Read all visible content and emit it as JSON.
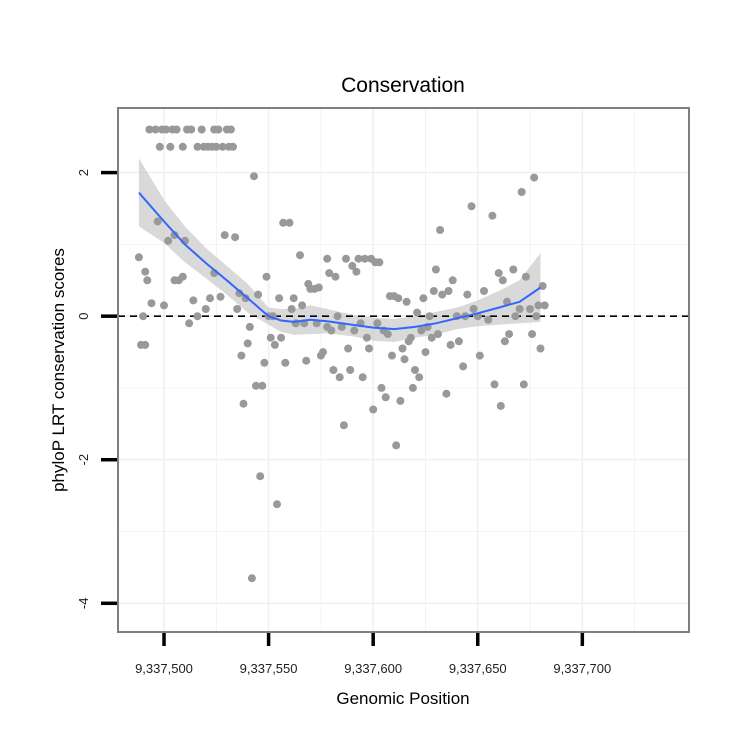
{
  "chart_data": {
    "type": "scatter",
    "title": "Conservation",
    "xlabel": "Genomic Position",
    "ylabel": "phyloP LRT conservation scores",
    "xlim": [
      9337478,
      9337751
    ],
    "ylim": [
      -4.4,
      2.9
    ],
    "x_ticks": [
      9337500,
      9337550,
      9337600,
      9337650,
      9337700
    ],
    "x_tick_labels": [
      "9,337,500",
      "9,337,550",
      "9,337,600",
      "9,337,650",
      "9,337,700"
    ],
    "y_ticks": [
      -4,
      -2,
      0,
      2
    ],
    "y_tick_labels": [
      "-4",
      "-2",
      "0",
      "2"
    ],
    "grid": true,
    "reference_line": {
      "y": 0,
      "style": "dashed"
    },
    "colors": {
      "points": "#999999",
      "smooth_line": "#3366ff",
      "ribbon": "#cccccc",
      "border": "#7f7f7f",
      "grid": "#f0f0f0",
      "reference": "#000000"
    },
    "points": [
      [
        9337488,
        0.82
      ],
      [
        9337489,
        -0.4
      ],
      [
        9337490,
        0.0
      ],
      [
        9337491,
        0.62
      ],
      [
        9337491,
        -0.4
      ],
      [
        9337492,
        0.5
      ],
      [
        9337493,
        2.6
      ],
      [
        9337494,
        0.18
      ],
      [
        9337496,
        2.6
      ],
      [
        9337497,
        1.32
      ],
      [
        9337498,
        2.36
      ],
      [
        9337499,
        2.6
      ],
      [
        9337500,
        0.15
      ],
      [
        9337501,
        2.6
      ],
      [
        9337502,
        1.05
      ],
      [
        9337503,
        2.36
      ],
      [
        9337504,
        2.6
      ],
      [
        9337505,
        1.13
      ],
      [
        9337505,
        0.5
      ],
      [
        9337506,
        2.6
      ],
      [
        9337507,
        0.5
      ],
      [
        9337509,
        2.36
      ],
      [
        9337509,
        0.55
      ],
      [
        9337510,
        1.05
      ],
      [
        9337511,
        2.6
      ],
      [
        9337512,
        -0.1
      ],
      [
        9337513,
        2.6
      ],
      [
        9337514,
        0.22
      ],
      [
        9337516,
        2.36
      ],
      [
        9337516,
        0.0
      ],
      [
        9337518,
        2.6
      ],
      [
        9337519,
        2.36
      ],
      [
        9337520,
        0.1
      ],
      [
        9337521,
        2.36
      ],
      [
        9337522,
        0.25
      ],
      [
        9337523,
        2.36
      ],
      [
        9337524,
        0.6
      ],
      [
        9337524,
        2.6
      ],
      [
        9337525,
        2.36
      ],
      [
        9337526,
        2.6
      ],
      [
        9337527,
        0.27
      ],
      [
        9337528,
        2.36
      ],
      [
        9337529,
        1.13
      ],
      [
        9337530,
        2.6
      ],
      [
        9337531,
        2.36
      ],
      [
        9337532,
        2.6
      ],
      [
        9337533,
        2.36
      ],
      [
        9337534,
        1.1
      ],
      [
        9337535,
        0.1
      ],
      [
        9337536,
        0.32
      ],
      [
        9337537,
        -0.55
      ],
      [
        9337538,
        -1.22
      ],
      [
        9337539,
        0.25
      ],
      [
        9337540,
        -0.38
      ],
      [
        9337541,
        -0.15
      ],
      [
        9337542,
        -3.65
      ],
      [
        9337543,
        1.95
      ],
      [
        9337544,
        -0.97
      ],
      [
        9337545,
        0.3
      ],
      [
        9337546,
        -2.23
      ],
      [
        9337547,
        -0.97
      ],
      [
        9337548,
        -0.65
      ],
      [
        9337549,
        0.55
      ],
      [
        9337550,
        0.0
      ],
      [
        9337551,
        -0.3
      ],
      [
        9337552,
        0.0
      ],
      [
        9337553,
        -0.4
      ],
      [
        9337554,
        -2.62
      ],
      [
        9337555,
        0.25
      ],
      [
        9337556,
        -0.3
      ],
      [
        9337557,
        1.3
      ],
      [
        9337558,
        -0.65
      ],
      [
        9337560,
        1.3
      ],
      [
        9337561,
        0.1
      ],
      [
        9337562,
        0.25
      ],
      [
        9337563,
        -0.1
      ],
      [
        9337565,
        0.85
      ],
      [
        9337566,
        0.15
      ],
      [
        9337567,
        -0.1
      ],
      [
        9337568,
        -0.62
      ],
      [
        9337569,
        0.45
      ],
      [
        9337570,
        0.38
      ],
      [
        9337572,
        0.38
      ],
      [
        9337573,
        -0.1
      ],
      [
        9337574,
        0.4
      ],
      [
        9337575,
        -0.55
      ],
      [
        9337576,
        -0.5
      ],
      [
        9337578,
        -0.15
      ],
      [
        9337578,
        0.8
      ],
      [
        9337579,
        0.6
      ],
      [
        9337580,
        -0.2
      ],
      [
        9337581,
        -0.75
      ],
      [
        9337582,
        0.55
      ],
      [
        9337583,
        0.0
      ],
      [
        9337584,
        -0.85
      ],
      [
        9337585,
        -0.15
      ],
      [
        9337586,
        -1.52
      ],
      [
        9337587,
        0.8
      ],
      [
        9337588,
        -0.45
      ],
      [
        9337589,
        -0.75
      ],
      [
        9337590,
        0.7
      ],
      [
        9337591,
        -0.2
      ],
      [
        9337592,
        0.62
      ],
      [
        9337593,
        0.8
      ],
      [
        9337594,
        -0.1
      ],
      [
        9337595,
        -0.85
      ],
      [
        9337596,
        0.8
      ],
      [
        9337597,
        -0.3
      ],
      [
        9337598,
        -0.45
      ],
      [
        9337599,
        0.8
      ],
      [
        9337600,
        -1.3
      ],
      [
        9337601,
        0.75
      ],
      [
        9337602,
        -0.1
      ],
      [
        9337603,
        0.75
      ],
      [
        9337604,
        -1.0
      ],
      [
        9337605,
        -0.2
      ],
      [
        9337606,
        -1.13
      ],
      [
        9337607,
        -0.25
      ],
      [
        9337608,
        0.28
      ],
      [
        9337609,
        -0.55
      ],
      [
        9337610,
        0.28
      ],
      [
        9337611,
        -1.8
      ],
      [
        9337612,
        0.25
      ],
      [
        9337613,
        -1.18
      ],
      [
        9337614,
        -0.45
      ],
      [
        9337615,
        -0.6
      ],
      [
        9337616,
        0.2
      ],
      [
        9337617,
        -0.35
      ],
      [
        9337618,
        -0.3
      ],
      [
        9337619,
        -1.0
      ],
      [
        9337620,
        -0.75
      ],
      [
        9337621,
        0.05
      ],
      [
        9337622,
        -0.85
      ],
      [
        9337623,
        -0.2
      ],
      [
        9337624,
        0.25
      ],
      [
        9337625,
        -0.5
      ],
      [
        9337626,
        -0.15
      ],
      [
        9337627,
        0.0
      ],
      [
        9337628,
        -0.3
      ],
      [
        9337629,
        0.35
      ],
      [
        9337630,
        0.65
      ],
      [
        9337631,
        -0.25
      ],
      [
        9337632,
        1.2
      ],
      [
        9337633,
        0.3
      ],
      [
        9337635,
        -1.08
      ],
      [
        9337636,
        0.35
      ],
      [
        9337637,
        -0.4
      ],
      [
        9337638,
        0.5
      ],
      [
        9337640,
        0.0
      ],
      [
        9337641,
        -0.35
      ],
      [
        9337643,
        -0.7
      ],
      [
        9337644,
        0.0
      ],
      [
        9337645,
        0.3
      ],
      [
        9337647,
        1.53
      ],
      [
        9337648,
        0.1
      ],
      [
        9337650,
        0.0
      ],
      [
        9337651,
        -0.55
      ],
      [
        9337653,
        0.35
      ],
      [
        9337655,
        -0.05
      ],
      [
        9337657,
        1.4
      ],
      [
        9337658,
        -0.95
      ],
      [
        9337660,
        0.6
      ],
      [
        9337661,
        -1.25
      ],
      [
        9337662,
        0.5
      ],
      [
        9337663,
        -0.35
      ],
      [
        9337664,
        0.2
      ],
      [
        9337665,
        -0.25
      ],
      [
        9337667,
        0.65
      ],
      [
        9337668,
        0.0
      ],
      [
        9337670,
        0.1
      ],
      [
        9337671,
        1.73
      ],
      [
        9337672,
        -0.95
      ],
      [
        9337673,
        0.55
      ],
      [
        9337675,
        0.1
      ],
      [
        9337676,
        -0.25
      ],
      [
        9337677,
        1.93
      ],
      [
        9337678,
        0.0
      ],
      [
        9337679,
        0.15
      ],
      [
        9337680,
        -0.45
      ],
      [
        9337681,
        0.42
      ],
      [
        9337682,
        0.15
      ]
    ],
    "smooth_line": [
      [
        9337488,
        1.72
      ],
      [
        9337500,
        1.32
      ],
      [
        9337510,
        1.0
      ],
      [
        9337520,
        0.74
      ],
      [
        9337530,
        0.5
      ],
      [
        9337540,
        0.25
      ],
      [
        9337550,
        0.0
      ],
      [
        9337556,
        -0.06
      ],
      [
        9337562,
        -0.08
      ],
      [
        9337570,
        -0.05
      ],
      [
        9337578,
        -0.07
      ],
      [
        9337590,
        -0.12
      ],
      [
        9337600,
        -0.16
      ],
      [
        9337610,
        -0.18
      ],
      [
        9337620,
        -0.15
      ],
      [
        9337630,
        -0.1
      ],
      [
        9337640,
        -0.03
      ],
      [
        9337650,
        0.04
      ],
      [
        9337660,
        0.12
      ],
      [
        9337670,
        0.2
      ],
      [
        9337680,
        0.4
      ]
    ],
    "ribbon_upper": [
      [
        9337488,
        2.2
      ],
      [
        9337500,
        1.62
      ],
      [
        9337510,
        1.25
      ],
      [
        9337520,
        0.95
      ],
      [
        9337530,
        0.7
      ],
      [
        9337540,
        0.45
      ],
      [
        9337550,
        0.12
      ],
      [
        9337556,
        0.1
      ],
      [
        9337562,
        0.1
      ],
      [
        9337570,
        0.15
      ],
      [
        9337578,
        0.1
      ],
      [
        9337590,
        0.02
      ],
      [
        9337600,
        -0.02
      ],
      [
        9337610,
        -0.04
      ],
      [
        9337620,
        0.0
      ],
      [
        9337630,
        0.06
      ],
      [
        9337640,
        0.12
      ],
      [
        9337650,
        0.22
      ],
      [
        9337660,
        0.35
      ],
      [
        9337670,
        0.5
      ],
      [
        9337680,
        0.88
      ]
    ],
    "ribbon_lower": [
      [
        9337488,
        1.25
      ],
      [
        9337500,
        1.02
      ],
      [
        9337510,
        0.75
      ],
      [
        9337520,
        0.53
      ],
      [
        9337530,
        0.3
      ],
      [
        9337540,
        0.05
      ],
      [
        9337550,
        -0.12
      ],
      [
        9337556,
        -0.22
      ],
      [
        9337562,
        -0.26
      ],
      [
        9337570,
        -0.25
      ],
      [
        9337578,
        -0.24
      ],
      [
        9337590,
        -0.28
      ],
      [
        9337600,
        -0.34
      ],
      [
        9337610,
        -0.36
      ],
      [
        9337620,
        -0.3
      ],
      [
        9337630,
        -0.26
      ],
      [
        9337640,
        -0.18
      ],
      [
        9337650,
        -0.14
      ],
      [
        9337660,
        -0.12
      ],
      [
        9337670,
        -0.1
      ],
      [
        9337680,
        -0.08
      ]
    ]
  }
}
